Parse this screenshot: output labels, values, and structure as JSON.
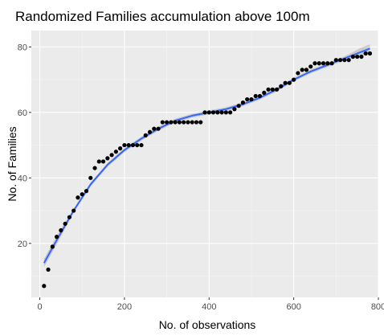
{
  "chart_data": {
    "type": "scatter",
    "title": "Randomized Families accumulation above 100m",
    "xlabel": "No. of observations",
    "ylabel": "No. of Families",
    "xlim": [
      -20,
      800
    ],
    "ylim": [
      3.5,
      85
    ],
    "xticks": [
      0,
      200,
      400,
      600,
      800
    ],
    "yticks": [
      20,
      40,
      60,
      80
    ],
    "grid": true,
    "background": "#ebebeb",
    "colors": {
      "points": "#000000",
      "fit_line": "#3366ff",
      "confidence_band": "#999999"
    },
    "series": [
      {
        "kind": "points",
        "x": [
          10,
          20,
          30,
          40,
          50,
          60,
          70,
          80,
          90,
          100,
          110,
          120,
          130,
          140,
          150,
          160,
          170,
          180,
          190,
          200,
          210,
          220,
          230,
          240,
          250,
          260,
          270,
          280,
          290,
          300,
          310,
          320,
          330,
          340,
          350,
          360,
          370,
          380,
          390,
          400,
          410,
          420,
          430,
          440,
          450,
          460,
          470,
          480,
          490,
          500,
          510,
          520,
          530,
          540,
          550,
          560,
          570,
          580,
          590,
          600,
          610,
          620,
          630,
          640,
          650,
          660,
          670,
          680,
          690,
          700,
          710,
          720,
          730,
          740,
          750,
          760,
          770,
          780
        ],
        "y": [
          7,
          12,
          19,
          22,
          24,
          26,
          28,
          30,
          34,
          35,
          36,
          40,
          43,
          45,
          45,
          46,
          47,
          48,
          49,
          50,
          50,
          50,
          50,
          50,
          53,
          54,
          55,
          55,
          57,
          57,
          57,
          57,
          57,
          57,
          57,
          57,
          57,
          57,
          60,
          60,
          60,
          60,
          60,
          60,
          60,
          61,
          62,
          63,
          64,
          64,
          65,
          65,
          66,
          67,
          67,
          67,
          68,
          69,
          69,
          70,
          72,
          73,
          73,
          74,
          75,
          75,
          75,
          75,
          75,
          76,
          76,
          76,
          76,
          77,
          77,
          77,
          78,
          78
        ]
      },
      {
        "kind": "fit",
        "x": [
          10,
          40,
          80,
          120,
          160,
          200,
          240,
          280,
          320,
          360,
          400,
          440,
          480,
          520,
          560,
          600,
          640,
          680,
          720,
          760,
          780
        ],
        "y": [
          14,
          21,
          30,
          38,
          44,
          48.5,
          52,
          55,
          57.5,
          59,
          60,
          61,
          62.5,
          64.5,
          67,
          70,
          72.5,
          74.5,
          76.5,
          78.5,
          79.5
        ]
      }
    ]
  }
}
